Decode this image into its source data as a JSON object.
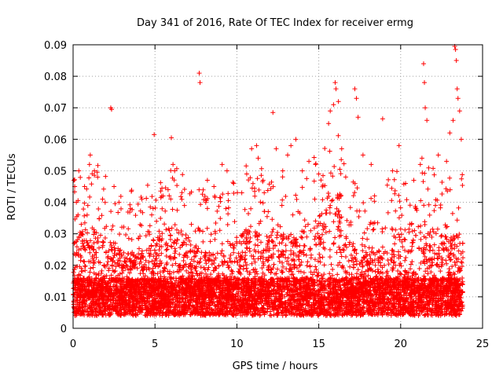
{
  "chart_data": {
    "type": "scatter",
    "title": "Day 341 of 2016, Rate Of TEC Index for receiver ermg",
    "xlabel": "GPS time / hours",
    "ylabel": "ROTI / TECUs",
    "xlim": [
      0,
      25
    ],
    "ylim": [
      0,
      0.09
    ],
    "xticks": [
      0,
      5,
      10,
      15,
      20,
      25
    ],
    "xtick_labels": [
      "0",
      "5",
      "10",
      "15",
      "20",
      "25"
    ],
    "yticks": [
      0,
      0.01,
      0.02,
      0.03,
      0.04,
      0.05,
      0.06,
      0.07,
      0.08,
      0.09
    ],
    "ytick_labels": [
      "0",
      "0.01",
      "0.02",
      "0.03",
      "0.04",
      "0.05",
      "0.06",
      "0.07",
      "0.08",
      "0.09"
    ],
    "grid": true,
    "marker": "plus",
    "color": "#ff0000",
    "series": [
      {
        "points": [
          [
            0.05,
            0.047
          ],
          [
            0.1,
            0.045
          ],
          [
            0.2,
            0.04
          ],
          [
            0.3,
            0.036
          ],
          [
            0.35,
            0.05
          ],
          [
            0.5,
            0.033
          ],
          [
            0.7,
            0.045
          ],
          [
            0.9,
            0.039
          ],
          [
            1.0,
            0.052
          ],
          [
            1.05,
            0.055
          ],
          [
            1.3,
            0.05
          ],
          [
            1.5,
            0.048
          ],
          [
            1.8,
            0.041
          ],
          [
            2.3,
            0.07
          ],
          [
            2.35,
            0.0695
          ],
          [
            2.5,
            0.045
          ],
          [
            2.8,
            0.04
          ],
          [
            3.5,
            0.038
          ],
          [
            4.2,
            0.041
          ],
          [
            4.8,
            0.036
          ],
          [
            4.95,
            0.0615
          ],
          [
            5.5,
            0.042
          ],
          [
            5.8,
            0.044
          ],
          [
            6.0,
            0.0605
          ],
          [
            6.1,
            0.052
          ],
          [
            6.2,
            0.05
          ],
          [
            6.8,
            0.039
          ],
          [
            7.7,
            0.081
          ],
          [
            7.75,
            0.078
          ],
          [
            8.2,
            0.047
          ],
          [
            8.6,
            0.045
          ],
          [
            9.1,
            0.052
          ],
          [
            9.4,
            0.05
          ],
          [
            9.8,
            0.046
          ],
          [
            10.3,
            0.043
          ],
          [
            10.6,
            0.049
          ],
          [
            10.9,
            0.057
          ],
          [
            11.2,
            0.058
          ],
          [
            11.3,
            0.054
          ],
          [
            11.6,
            0.047
          ],
          [
            12.2,
            0.0685
          ],
          [
            12.4,
            0.057
          ],
          [
            12.8,
            0.05
          ],
          [
            13.1,
            0.055
          ],
          [
            13.3,
            0.058
          ],
          [
            13.6,
            0.06
          ],
          [
            14.0,
            0.05
          ],
          [
            14.4,
            0.053
          ],
          [
            14.8,
            0.052
          ],
          [
            15.0,
            0.049
          ],
          [
            15.6,
            0.065
          ],
          [
            15.7,
            0.069
          ],
          [
            15.9,
            0.071
          ],
          [
            16.0,
            0.078
          ],
          [
            16.05,
            0.076
          ],
          [
            16.2,
            0.072
          ],
          [
            16.4,
            0.057
          ],
          [
            17.2,
            0.076
          ],
          [
            17.3,
            0.073
          ],
          [
            17.4,
            0.067
          ],
          [
            17.7,
            0.055
          ],
          [
            18.2,
            0.052
          ],
          [
            18.9,
            0.0665
          ],
          [
            19.5,
            0.05
          ],
          [
            19.9,
            0.058
          ],
          [
            20.3,
            0.046
          ],
          [
            20.8,
            0.047
          ],
          [
            21.2,
            0.052
          ],
          [
            21.3,
            0.054
          ],
          [
            21.4,
            0.084
          ],
          [
            21.45,
            0.078
          ],
          [
            21.5,
            0.07
          ],
          [
            21.6,
            0.066
          ],
          [
            22.3,
            0.055
          ],
          [
            22.8,
            0.053
          ],
          [
            23.0,
            0.062
          ],
          [
            23.2,
            0.066
          ],
          [
            23.3,
            0.0895
          ],
          [
            23.35,
            0.0885
          ],
          [
            23.4,
            0.085
          ],
          [
            23.45,
            0.076
          ],
          [
            23.5,
            0.073
          ],
          [
            23.6,
            0.069
          ],
          [
            23.7,
            0.06
          ]
        ]
      }
    ]
  }
}
